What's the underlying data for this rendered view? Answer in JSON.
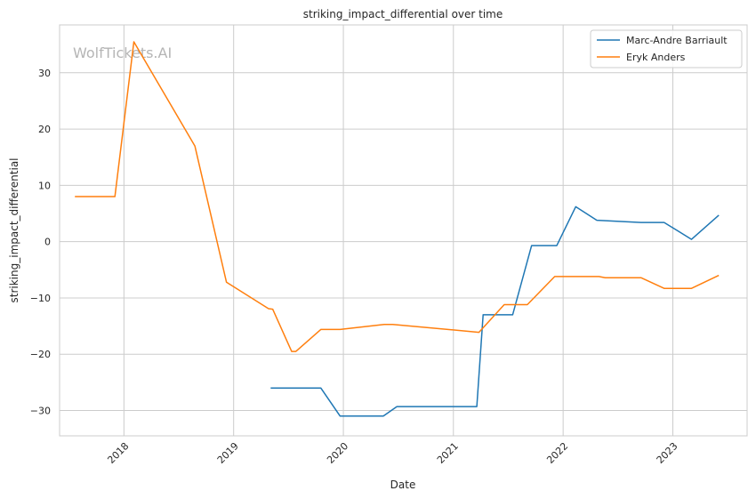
{
  "watermark": "WolfTickets.AI",
  "chart_data": {
    "type": "line",
    "title": "striking_impact_differential over time",
    "xlabel": "Date",
    "ylabel": "striking_impact_differential",
    "x_type": "date",
    "xlim": [
      "2017-06-01",
      "2023-09-05"
    ],
    "ylim": [
      -34.5,
      38.5
    ],
    "x_ticks": [
      "2018",
      "2019",
      "2020",
      "2021",
      "2022",
      "2023"
    ],
    "y_ticks": [
      30,
      20,
      10,
      0,
      -10,
      -20,
      -30
    ],
    "y_tick_labels": [
      "30",
      "20",
      "10",
      "0",
      "−10",
      "−20",
      "−30"
    ],
    "grid": true,
    "legend_position": "top-right",
    "series": [
      {
        "name": "Marc-Andre Barriault",
        "color": "#1f77b4",
        "points": [
          [
            "2019-05-04",
            -26.0
          ],
          [
            "2019-10-18",
            -26.0
          ],
          [
            "2019-12-21",
            -31.0
          ],
          [
            "2020-05-13",
            -31.0
          ],
          [
            "2020-06-27",
            -29.3
          ],
          [
            "2021-03-20",
            -29.3
          ],
          [
            "2021-04-10",
            -13.0
          ],
          [
            "2021-07-17",
            -13.0
          ],
          [
            "2021-09-18",
            -0.7
          ],
          [
            "2021-12-11",
            -0.7
          ],
          [
            "2022-02-12",
            6.2
          ],
          [
            "2022-04-23",
            3.8
          ],
          [
            "2022-09-17",
            3.4
          ],
          [
            "2022-12-03",
            3.4
          ],
          [
            "2023-03-04",
            0.4
          ],
          [
            "2023-06-03",
            4.7
          ]
        ]
      },
      {
        "name": "Eryk Anders",
        "color": "#ff7f0e",
        "points": [
          [
            "2017-07-22",
            8.0
          ],
          [
            "2017-12-02",
            8.0
          ],
          [
            "2018-02-03",
            35.5
          ],
          [
            "2018-08-25",
            17.0
          ],
          [
            "2018-12-08",
            -7.2
          ],
          [
            "2019-04-27",
            -11.9
          ],
          [
            "2019-05-11",
            -12.0
          ],
          [
            "2019-07-13",
            -19.5
          ],
          [
            "2019-07-27",
            -19.5
          ],
          [
            "2019-10-18",
            -15.6
          ],
          [
            "2019-12-21",
            -15.6
          ],
          [
            "2020-05-16",
            -14.7
          ],
          [
            "2020-06-13",
            -14.7
          ],
          [
            "2021-03-27",
            -16.1
          ],
          [
            "2021-06-19",
            -11.2
          ],
          [
            "2021-09-04",
            -11.2
          ],
          [
            "2021-12-04",
            -6.2
          ],
          [
            "2022-04-30",
            -6.2
          ],
          [
            "2022-05-21",
            -6.4
          ],
          [
            "2022-09-17",
            -6.4
          ],
          [
            "2022-12-03",
            -8.3
          ],
          [
            "2023-03-04",
            -8.3
          ],
          [
            "2023-06-03",
            -6.0
          ]
        ]
      }
    ]
  }
}
